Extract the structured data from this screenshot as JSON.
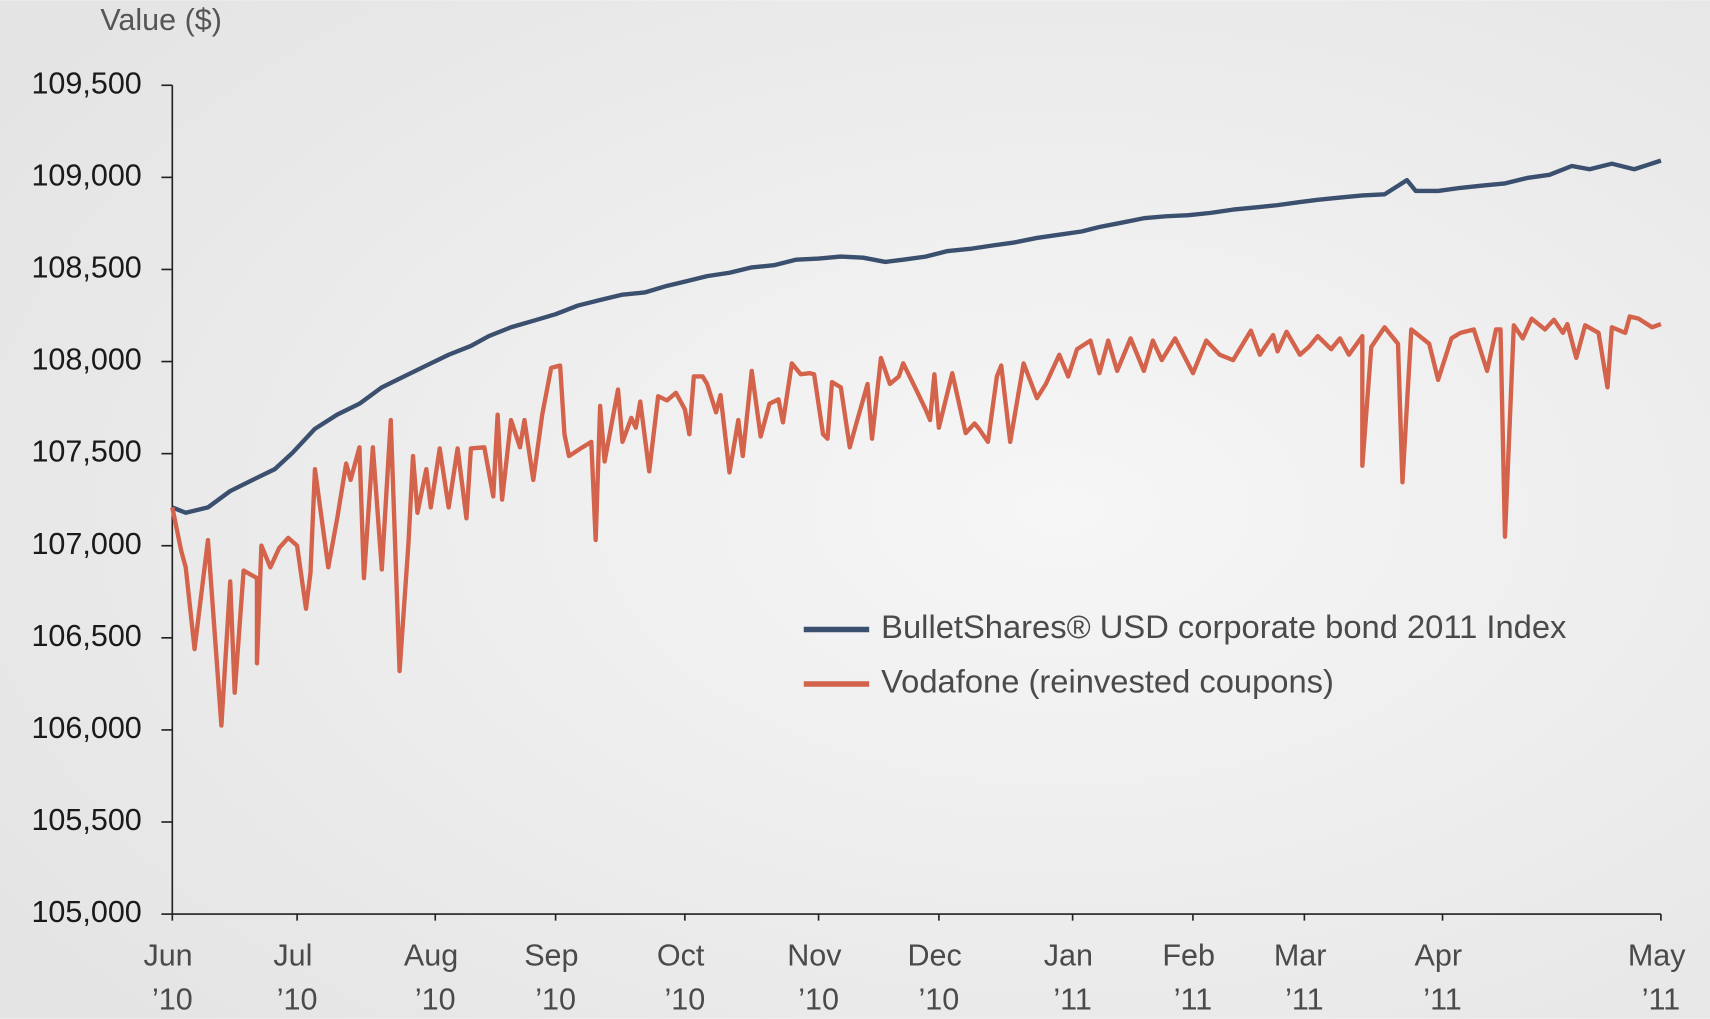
{
  "chart_data": {
    "type": "line",
    "y_axis_label": "Value ($)",
    "xlim": [
      0,
      334
    ],
    "xticks": [
      {
        "value": 0,
        "label": "Jun ’10"
      },
      {
        "value": 28,
        "label": "Jul ’10"
      },
      {
        "value": 59,
        "label": "Aug ’10"
      },
      {
        "value": 86,
        "label": "Sep ’10"
      },
      {
        "value": 115,
        "label": "Oct ’10"
      },
      {
        "value": 145,
        "label": "Nov ’10"
      },
      {
        "value": 172,
        "label": "Dec ’10"
      },
      {
        "value": 202,
        "label": "Jan ’11"
      },
      {
        "value": 229,
        "label": "Feb ’11"
      },
      {
        "value": 254,
        "label": "Mar ’11"
      },
      {
        "value": 285,
        "label": "Apr ’11"
      },
      {
        "value": 334,
        "label": "May ’11"
      }
    ],
    "ylim": [
      105000,
      109500
    ],
    "yticks": [
      {
        "value": 105000,
        "label": "105,000"
      },
      {
        "value": 105500,
        "label": "105,500"
      },
      {
        "value": 106000,
        "label": "106,000"
      },
      {
        "value": 106500,
        "label": "106,500"
      },
      {
        "value": 107000,
        "label": "107,000"
      },
      {
        "value": 107500,
        "label": "107,500"
      },
      {
        "value": 108000,
        "label": "108,000"
      },
      {
        "value": 108500,
        "label": "108,500"
      },
      {
        "value": 109000,
        "label": "109,000"
      },
      {
        "value": 109500,
        "label": "109,500"
      }
    ],
    "grid": false,
    "legend": "right",
    "series": [
      {
        "name": "BulletShares® USD corporate bond 2011 Index",
        "color": "#3b4f6e",
        "x": [
          0,
          3,
          8,
          13,
          18,
          23,
          27,
          32,
          37,
          42,
          47,
          52,
          57,
          62,
          67,
          71,
          76,
          81,
          86,
          91,
          96,
          101,
          106,
          111,
          115,
          120,
          125,
          130,
          135,
          140,
          145,
          150,
          155,
          160,
          164,
          169,
          174,
          179,
          184,
          189,
          194,
          199,
          204,
          208,
          213,
          218,
          223,
          228,
          233,
          238,
          243,
          248,
          253,
          257,
          262,
          267,
          272,
          277,
          279,
          284,
          289,
          294,
          299,
          304,
          309,
          314,
          318,
          323,
          328,
          334
        ],
        "values": [
          107208,
          107179,
          107208,
          107297,
          107357,
          107416,
          107505,
          107635,
          107712,
          107771,
          107860,
          107919,
          107978,
          108037,
          108085,
          108138,
          108186,
          108221,
          108257,
          108304,
          108334,
          108363,
          108375,
          108411,
          108434,
          108464,
          108482,
          108511,
          108523,
          108553,
          108559,
          108570,
          108564,
          108541,
          108553,
          108570,
          108600,
          108612,
          108630,
          108647,
          108671,
          108689,
          108706,
          108730,
          108754,
          108778,
          108789,
          108795,
          108807,
          108825,
          108837,
          108849,
          108866,
          108878,
          108890,
          108902,
          108908,
          108985,
          108926,
          108926,
          108943,
          108955,
          108967,
          108997,
          109014,
          109062,
          109044,
          109074,
          109044,
          109091
        ]
      },
      {
        "name": "Vodafone (reinvested coupons)",
        "color": "#d4634c",
        "x": [
          0,
          2,
          3,
          5,
          8,
          11,
          13,
          14,
          16,
          19,
          19,
          20,
          22,
          24,
          26,
          28,
          30,
          31,
          32,
          35,
          37,
          39,
          40,
          42,
          43,
          45,
          47,
          49,
          51,
          53,
          54,
          55,
          57,
          58,
          60,
          62,
          64,
          66,
          67,
          70,
          72,
          73,
          74,
          76,
          78,
          79,
          81,
          83,
          85,
          87,
          88,
          89,
          92,
          94,
          95,
          96,
          97,
          100,
          101,
          103,
          104,
          105,
          107,
          109,
          111,
          113,
          115,
          116,
          117,
          119,
          120,
          122,
          123,
          125,
          127,
          128,
          130,
          132,
          134,
          136,
          137,
          139,
          141,
          143,
          144,
          146,
          147,
          148,
          150,
          152,
          153,
          156,
          157,
          159,
          161,
          163,
          164,
          167,
          169,
          170,
          171,
          172,
          175,
          178,
          180,
          181,
          183,
          185,
          186,
          188,
          191,
          194,
          196,
          199,
          201,
          203,
          206,
          208,
          210,
          212,
          215,
          218,
          220,
          222,
          225,
          229,
          232,
          235,
          238,
          242,
          244,
          247,
          248,
          250,
          253,
          255,
          257,
          260,
          262,
          264,
          267,
          267,
          269,
          272,
          275,
          276,
          278,
          282,
          284,
          287,
          289,
          292,
          295,
          297,
          298,
          299,
          301,
          303,
          305,
          308,
          310,
          312,
          313,
          315,
          317,
          320,
          322,
          323,
          326,
          327,
          329,
          332,
          334
        ],
        "values": [
          107208,
          106972,
          106883,
          106439,
          107031,
          106024,
          106806,
          106202,
          106865,
          106824,
          106362,
          107001,
          106883,
          106989,
          107043,
          107001,
          106658,
          106853,
          107416,
          106883,
          107149,
          107446,
          107357,
          107534,
          106824,
          107534,
          106871,
          107682,
          106320,
          107019,
          107487,
          107179,
          107416,
          107208,
          107528,
          107208,
          107528,
          107149,
          107528,
          107534,
          107268,
          107712,
          107250,
          107682,
          107534,
          107682,
          107357,
          107712,
          107966,
          107978,
          107605,
          107487,
          107534,
          107564,
          107031,
          107759,
          107457,
          107848,
          107564,
          107694,
          107641,
          107783,
          107404,
          107812,
          107789,
          107830,
          107741,
          107605,
          107919,
          107919,
          107878,
          107724,
          107818,
          107398,
          107682,
          107487,
          107949,
          107593,
          107771,
          107795,
          107670,
          107990,
          107931,
          107937,
          107931,
          107605,
          107581,
          107889,
          107860,
          107534,
          107623,
          107878,
          107581,
          108020,
          107878,
          107919,
          107990,
          107842,
          107741,
          107682,
          107931,
          107641,
          107937,
          107611,
          107664,
          107635,
          107564,
          107919,
          107978,
          107564,
          107990,
          107801,
          107878,
          108037,
          107919,
          108067,
          108114,
          107937,
          108114,
          107949,
          108126,
          107949,
          108114,
          108008,
          108126,
          107937,
          108114,
          108037,
          108008,
          108168,
          108037,
          108144,
          108055,
          108162,
          108037,
          108079,
          108138,
          108067,
          108126,
          108037,
          108138,
          107434,
          108079,
          108186,
          108097,
          107345,
          108174,
          108097,
          107901,
          108126,
          108156,
          108174,
          107949,
          108174,
          108174,
          107049,
          108197,
          108126,
          108233,
          108174,
          108227,
          108156,
          108203,
          108020,
          108197,
          108156,
          107860,
          108186,
          108156,
          108245,
          108233,
          108186,
          108203
        ]
      }
    ]
  }
}
